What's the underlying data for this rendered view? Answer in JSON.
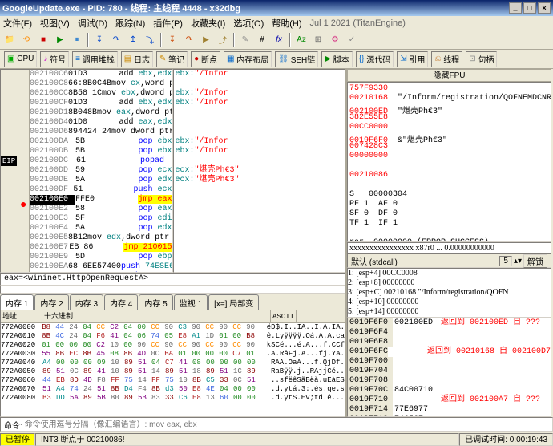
{
  "title": "GoogleUpdate.exe - PID: 780 - 线程: 主线程 4448 - x32dbg",
  "menu": [
    "文件(F)",
    "视图(V)",
    "调试(D)",
    "跟踪(N)",
    "插件(P)",
    "收藏夹(I)",
    "选项(O)",
    "帮助(H)",
    "Jul 1 2021 (TitanEngine)"
  ],
  "toolbar_groups": [
    "CPU",
    "符号",
    "调用堆栈",
    "日志",
    "笔记",
    "断点",
    "内存布局",
    "SEH链",
    "脚本",
    "源代码",
    "引用",
    "线程",
    "句柄"
  ],
  "toolbar_icons": [
    "#1e6db8",
    "#808080",
    "#3cb371",
    "#c71585",
    "#808080",
    "#ff8c00",
    "#00c000",
    "#c08000",
    "#ff0000",
    "#606060",
    "#fx",
    "#800080"
  ],
  "eip_label": "EIP",
  "disasm": [
    {
      "a": "002100C6",
      "b": "01D3",
      "m": "add ",
      "op": "ebx,edx",
      "hl": ""
    },
    {
      "a": "002100C8",
      "b": "66:8B0C4B",
      "m": "mov ",
      "op": "cx,word ptr ds:[ebx+ecx*2]",
      "hl": ""
    },
    {
      "a": "002100CC",
      "b": "8B58 1C",
      "m": "mov ",
      "op": "ebx,dword ptr ds:[eax+1C]",
      "hl": ""
    },
    {
      "a": "002100CF",
      "b": "01D3",
      "m": "add ",
      "op": "ebx,edx",
      "hl": ""
    },
    {
      "a": "002100D1",
      "b": "8B048B",
      "m": "mov ",
      "op": "eax,dword ptr ds:[ebx+ecx*4]",
      "hl": ""
    },
    {
      "a": "002100D4",
      "b": "01D0",
      "m": "add ",
      "op": "eax,edx",
      "hl": ""
    },
    {
      "a": "002100D6",
      "b": "894424 24",
      "m": "mov ",
      "op": "dword ptr ss:[esp+24],eax",
      "hl": ""
    },
    {
      "a": "002100DA",
      "b": "5B",
      "m": "pop ",
      "op": "ebx",
      "hl": "pop"
    },
    {
      "a": "002100DB",
      "b": "5B",
      "m": "pop ",
      "op": "ebx",
      "hl": "pop"
    },
    {
      "a": "002100DC",
      "b": "61",
      "m": "popad",
      "op": "",
      "hl": "pop"
    },
    {
      "a": "002100DD",
      "b": "59",
      "m": "pop ",
      "op": "ecx",
      "hl": "pop"
    },
    {
      "a": "002100DE",
      "b": "5A",
      "m": "pop ",
      "op": "edx",
      "hl": "pop"
    },
    {
      "a": "002100DF",
      "b": "51",
      "m": "push ",
      "op": "ecx",
      "hl": "push"
    },
    {
      "a": "002100E0",
      "b": "FFE0",
      "m": "jmp ",
      "op": "eax",
      "hl": "jmp",
      "sel": true
    },
    {
      "a": "002100E2",
      "b": "58",
      "m": "pop ",
      "op": "eax",
      "hl": "pop"
    },
    {
      "a": "002100E3",
      "b": "5F",
      "m": "pop ",
      "op": "edi",
      "hl": "pop"
    },
    {
      "a": "002100E4",
      "b": "5A",
      "m": "pop ",
      "op": "edx",
      "hl": "pop"
    },
    {
      "a": "002100E5",
      "b": "8B12",
      "m": "mov ",
      "op": "edx,dword ptr ds:[edx]",
      "hl": ""
    },
    {
      "a": "002100E7",
      "b": "EB 86",
      "m": "jmp ",
      "op": "210015",
      "hl": "jmp"
    },
    {
      "a": "002100E9",
      "b": "5D",
      "m": "pop ",
      "op": "ebp",
      "hl": "pop"
    },
    {
      "a": "002100EA",
      "b": "68 6EE57400",
      "m": "push ",
      "op": "74ESE6E",
      "hl": "push"
    },
    {
      "a": "002100EF",
      "b": "68 77696E69",
      "m": "push ",
      "op": "696E6977",
      "hl": "push"
    },
    {
      "a": "002100F4",
      "b": "54",
      "m": "push ",
      "op": "esp",
      "hl": "push"
    },
    {
      "a": "002100F5",
      "b": "68 4C772607",
      "m": "push ",
      "op": "726774C",
      "hl": "push"
    },
    {
      "a": "002100FA",
      "b": "FFD5",
      "m": "call ",
      "op": "ebp",
      "hl": "call"
    },
    {
      "a": "002100FC",
      "b": "E8 A6000000",
      "m": "call ",
      "op": "2100A7",
      "hl": "call"
    },
    {
      "a": "00210101",
      "b": "31FF",
      "m": "xor ",
      "op": "edi,edi",
      "hl": ""
    },
    {
      "a": "00210103",
      "b": "57",
      "m": "push ",
      "op": "edi",
      "hl": "push"
    },
    {
      "a": "00210104",
      "b": "57",
      "m": "push ",
      "op": "edi",
      "hl": "push"
    },
    {
      "a": "00210105",
      "b": "57",
      "m": "push ",
      "op": "edi",
      "hl": "push"
    },
    {
      "a": "00210106",
      "b": "57",
      "m": "push ",
      "op": "edi",
      "hl": "push"
    },
    {
      "a": "00210107",
      "b": "57",
      "m": "push ",
      "op": "edi",
      "hl": "push"
    }
  ],
  "refs": [
    {
      "l": "ebx:",
      "v": "\"/Infor"
    },
    {
      "l": "",
      "v": ""
    },
    {
      "l": "ebx:",
      "v": "\"/Infor"
    },
    {
      "l": "ebx:",
      "v": "\"/Infor"
    },
    {
      "l": "",
      "v": ""
    },
    {
      "l": "",
      "v": ""
    },
    {
      "l": "",
      "v": ""
    },
    {
      "l": "ebx:",
      "v": "\"/Infor"
    },
    {
      "l": "ebx:",
      "v": "\"/Infor"
    },
    {
      "l": "",
      "v": ""
    },
    {
      "l": "ecx:",
      "v": "\"煁壳Ph€3\""
    },
    {
      "l": "ecx:",
      "v": "\"煁壳Ph€3\""
    },
    {
      "l": "",
      "v": ""
    },
    {
      "l": "",
      "v": ""
    },
    {
      "l": "",
      "v": ""
    },
    {
      "l": "",
      "v": ""
    },
    {
      "l": "",
      "v": ""
    },
    {
      "l": "",
      "v": ""
    },
    {
      "l": "",
      "v": ""
    },
    {
      "l": "",
      "v": ""
    },
    {
      "l": "",
      "v": ""
    },
    {
      "l": "",
      "v": ""
    },
    {
      "l": "",
      "v": ""
    },
    {
      "l": "",
      "v": ""
    },
    {
      "l": "",
      "v": ""
    },
    {
      "l": "call $0",
      "v": ""
    }
  ],
  "eax_line": "eax=<wininet.HttpOpenRequestA>",
  "mem_tabs": [
    "内存 1",
    "内存 2",
    "内存 3",
    "内存 4",
    "内存 5",
    "监视 1",
    "[x=] 局部变"
  ],
  "dump_headers": [
    "地址",
    "十六进制",
    "ASCII"
  ],
  "dump": [
    {
      "a": "772A0000",
      "h": [
        "B8",
        "44",
        "24",
        "04",
        "CC",
        "C2",
        "04",
        "00",
        "CC",
        "90",
        "C3",
        "90",
        "CC",
        "90",
        "CC",
        "90"
      ],
      "s": "ëD$.I..IA..I.A.IA."
    },
    {
      "a": "772A0010",
      "h": [
        "8B",
        "4C",
        "24",
        "04",
        "F6",
        "41",
        "04",
        "06",
        "74",
        "05",
        "E8",
        "A1",
        "1D",
        "01",
        "00",
        "B8"
      ],
      "s": "ê.Lyÿÿÿÿ.Oá.A.A.ca"
    },
    {
      "a": "772A0020",
      "h": [
        "01",
        "00",
        "00",
        "00",
        "C2",
        "10",
        "00",
        "90",
        "CC",
        "90",
        "CC",
        "90",
        "CC",
        "90",
        "CC",
        "90"
      ],
      "s": "kSCé...é.A...f.CCf"
    },
    {
      "a": "772A0030",
      "h": [
        "55",
        "8B",
        "EC",
        "8B",
        "45",
        "08",
        "8B",
        "4D",
        "0C",
        "BA",
        "01",
        "00",
        "00",
        "00",
        "C7",
        "01"
      ],
      "s": ".A.RâFj.A...fj.YA."
    },
    {
      "a": "772A0040",
      "h": [
        "A4",
        "00",
        "00",
        "00",
        "09",
        "10",
        "89",
        "51",
        "04",
        "C7",
        "41",
        "08",
        "00",
        "00",
        "00",
        "00"
      ],
      "s": "RAA.OaA...f.QjDf."
    },
    {
      "a": "772A0050",
      "h": [
        "89",
        "51",
        "0C",
        "89",
        "41",
        "10",
        "89",
        "51",
        "14",
        "89",
        "51",
        "18",
        "89",
        "51",
        "1C",
        "89"
      ],
      "s": "RaBÿÿ.j..RAjjCé.."
    },
    {
      "a": "772A0060",
      "h": [
        "44",
        "EB",
        "8D",
        "4D",
        "F8",
        "FF",
        "75",
        "14",
        "FF",
        "75",
        "10",
        "8B",
        "C5",
        "33",
        "0C",
        "51"
      ],
      "s": "..sfëêSãBëà.uEàES"
    },
    {
      "a": "772A0070",
      "h": [
        "51",
        "A4",
        "74",
        "24",
        "51",
        "8B",
        "D4",
        "F4",
        "8B",
        "d3",
        "50",
        "E8",
        "4E",
        "04",
        "00",
        "00"
      ],
      "s": ".d.ytá.3:.és.qe.s"
    },
    {
      "a": "772A0080",
      "h": [
        "B3",
        "DD",
        "5A",
        "89",
        "5B",
        "80",
        "89",
        "5B",
        "83",
        "33",
        "C6",
        "E8",
        "13",
        "60",
        "00",
        "00"
      ],
      "s": ".d.ytS.Ev;td.ê..."
    }
  ],
  "hex_colors": {
    "B8": "c0",
    "44": "c1",
    "24": "c6",
    "04": "c2",
    "CC": "c3",
    "C2": "c4",
    "00": "c2",
    "90": "c6",
    "C3": "c5",
    "8B": "c0",
    "4C": "c1",
    "F6": "c7",
    "41": "c4",
    "06": "c2",
    "74": "c1",
    "05": "c2",
    "E8": "c7",
    "A1": "c5",
    "1D": "c6",
    "01": "c2",
    "C7": "c7",
    "10": "c6",
    "55": "c4",
    "EC": "c7",
    "45": "c4",
    "08": "c2",
    "4D": "c4",
    "0C": "c6",
    "BA": "c7",
    "A4": "c5",
    "09": "c2",
    "89": "c0",
    "51": "c4",
    "14": "c6",
    "18": "c6",
    "1C": "c6",
    "EB": "c7",
    "8D": "c0",
    "F8": "c6",
    "FF": "c7",
    "75": "c1",
    "50": "c4",
    "4E": "c1",
    "D4": "c5",
    "F4": "c6",
    "d3": "c5",
    "B3": "c7",
    "DD": "c5",
    "5A": "c4",
    "5B": "c4",
    "80": "c6",
    "83": "c6",
    "33": "c0",
    "C6": "c5",
    "13": "c6",
    "60": "c1",
    "C5": "c5"
  },
  "fpu_title": "隐藏FPU",
  "registers": [
    {
      "r": "757F9330",
      "c": "<wininet.HttpOpenRequestA>"
    },
    {
      "r": "00210168",
      "c": "\"/Inform/registration/QOFNEMDCNR9\""
    },
    {
      "r": "002100ED",
      "c": "\"煁壳Ph€3\""
    },
    {
      "r": "382E55E8",
      "c": ""
    },
    {
      "r": "00CC0000",
      "c": ""
    },
    {
      "r": "0019F6F0",
      "c": "&\"煁壳Ph€3\""
    },
    {
      "r": "007428C3",
      "c": ""
    },
    {
      "r": "00000000",
      "c": ""
    },
    {
      "r": "",
      "c": ""
    },
    {
      "r": "00210086",
      "c": ""
    },
    {
      "r": "",
      "c": ""
    },
    {
      "r": "S   00000304",
      "c": ""
    },
    {
      "r": "PF 1  AF 0",
      "c": ""
    },
    {
      "r": "SF 0  DF 0",
      "c": ""
    },
    {
      "r": "TF 1  IF 1",
      "c": ""
    },
    {
      "r": "",
      "c": ""
    },
    {
      "r": "ror  00000000 (ERROR_SUCCESS)",
      "c": ""
    },
    {
      "r": "tus  00000000 (STATUS_SUCCESS)",
      "c": ""
    },
    {
      "r": "",
      "c": ""
    },
    {
      "r": "2B  FS 0053",
      "c": ""
    },
    {
      "r": "2B  DS 002B",
      "c": ""
    },
    {
      "r": "23  SS 002B",
      "c": ""
    }
  ],
  "reg_scroll": "xxxxxxxxxxxxxxxx  x87r0 ...  0.00000000000",
  "stack_header": {
    "label": "默认 (stdcall)",
    "spin": "5",
    "btn": "解锁"
  },
  "esp_lines": [
    {
      "n": "esp+4",
      "v": "00CC0008"
    },
    {
      "n": "esp+8",
      "v": "00000000"
    },
    {
      "n": "esp+C",
      "v": "00210168",
      "c": "\"/Inform/registration/QOFN"
    },
    {
      "n": "esp+10",
      "v": "00000000"
    },
    {
      "n": "esp+14",
      "v": "00000000"
    }
  ],
  "stack": [
    {
      "a": "0019F6F0",
      "v": "002100ED",
      "c": "返回到 002100ED 自 ???",
      "red": true
    },
    {
      "a": "0019F6F4",
      "v": "",
      "c": ""
    },
    {
      "a": "0019F6F8",
      "v": "",
      "c": ""
    },
    {
      "a": "0019F6FC",
      "v": "",
      "c": "返回到 00210168 自 002100D7",
      "red": true
    },
    {
      "a": "0019F700",
      "v": "",
      "c": ""
    },
    {
      "a": "0019F704",
      "v": "",
      "c": ""
    },
    {
      "a": "0019F708",
      "v": "",
      "c": ""
    },
    {
      "a": "0019F70C",
      "v": "84C00710",
      "c": ""
    },
    {
      "a": "0019F710",
      "v": "",
      "c": "返回到 002100A7 自 ???",
      "red": true
    },
    {
      "a": "0019F714",
      "v": "77E6977",
      "c": ""
    },
    {
      "a": "0019F718",
      "v": "74656E",
      "c": ""
    },
    {
      "a": "0019F71C",
      "v": "",
      "c": "返回到 goopdate.100111C1 自 ???",
      "red": true
    }
  ],
  "cmd_label": "命令:",
  "cmd_placeholder": "命令使用逗号分隔（像汇编语言）: mov eax, ebx",
  "status_paused": "已暂停",
  "status_msg": "INT3 断点于 00210086!",
  "status_time_label": "已调试时间:",
  "status_time": "0:00:19:43"
}
